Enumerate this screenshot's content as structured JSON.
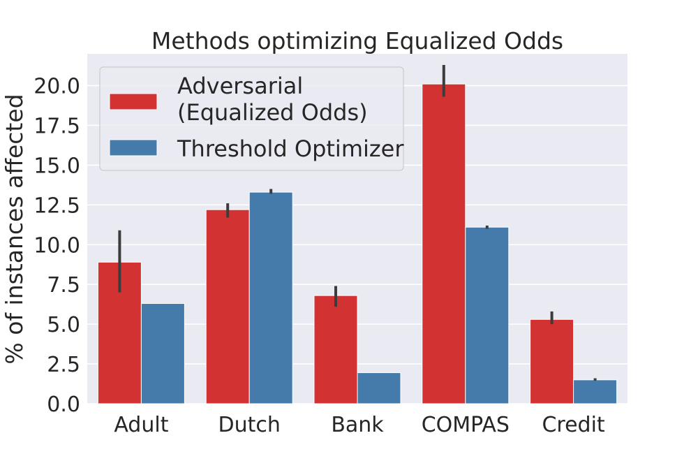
{
  "chart_data": {
    "type": "bar",
    "title": "Methods optimizing Equalized Odds",
    "xlabel": "",
    "ylabel": "% of instances affected",
    "categories": [
      "Adult",
      "Dutch",
      "Bank",
      "COMPAS",
      "Credit"
    ],
    "ylim": [
      0,
      22
    ],
    "yticks": [
      "0.0",
      "2.5",
      "5.0",
      "7.5",
      "10.0",
      "12.5",
      "15.0",
      "17.5",
      "20.0"
    ],
    "grid": true,
    "legend_position": "top-left",
    "series": [
      {
        "name": "Adversarial\n(Equalized Odds)",
        "color": "#d23232",
        "values": [
          8.9,
          12.2,
          6.8,
          20.1,
          5.3
        ],
        "error_low": [
          7.0,
          11.7,
          6.1,
          19.3,
          5.0
        ],
        "error_high": [
          10.9,
          12.6,
          7.4,
          21.3,
          5.8
        ]
      },
      {
        "name": "Threshold Optimizer",
        "color": "#457baa",
        "values": [
          6.3,
          13.3,
          1.95,
          11.1,
          1.5
        ],
        "error_low": [
          6.3,
          13.2,
          1.95,
          11.0,
          1.45
        ],
        "error_high": [
          6.3,
          13.5,
          1.95,
          11.2,
          1.6
        ]
      }
    ]
  }
}
